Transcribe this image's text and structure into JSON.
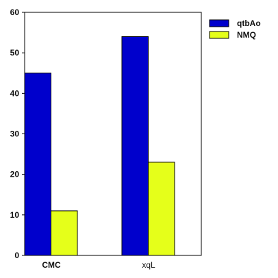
{
  "chart_data": {
    "type": "bar",
    "title": "",
    "xlabel": "",
    "ylabel": "",
    "categories": [
      "CMC",
      "xqL"
    ],
    "series": [
      {
        "name": "qtbAo",
        "values": [
          45,
          54
        ],
        "color": "#0000cc"
      },
      {
        "name": "NMQ",
        "values": [
          11,
          23
        ],
        "color": "#e5ff1a"
      }
    ],
    "ylim": [
      0,
      60
    ],
    "yticks": [
      0,
      10,
      20,
      30,
      40,
      50,
      60
    ],
    "grid": false,
    "legend": "top-right, outside plot area"
  }
}
